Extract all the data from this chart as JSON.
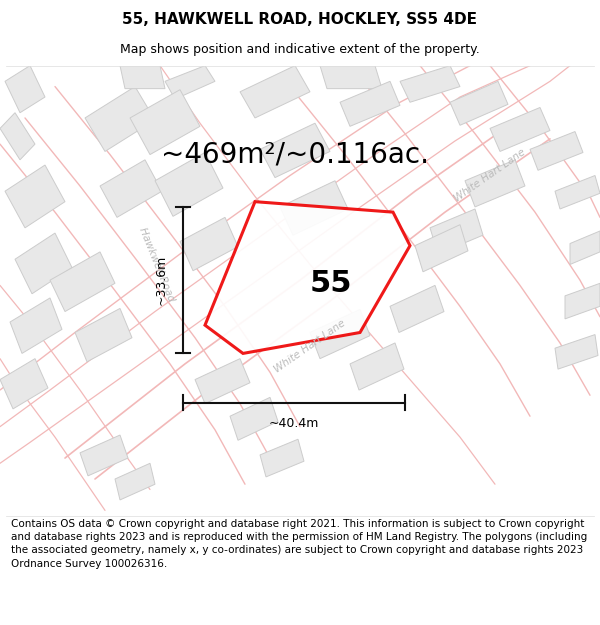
{
  "title": "55, HAWKWELL ROAD, HOCKLEY, SS5 4DE",
  "subtitle": "Map shows position and indicative extent of the property.",
  "area_label": "~469m²/~0.116ac.",
  "property_number": "55",
  "dim_width": "~40.4m",
  "dim_height": "~33.6m",
  "footer": "Contains OS data © Crown copyright and database right 2021. This information is subject to Crown copyright and database rights 2023 and is reproduced with the permission of HM Land Registry. The polygons (including the associated geometry, namely x, y co-ordinates) are subject to Crown copyright and database rights 2023 Ordnance Survey 100026316.",
  "road_color": "#f2b8b8",
  "road_color2": "#e8a0a0",
  "building_color": "#e8e8e8",
  "building_edge": "#cccccc",
  "property_outline_color": "#ee0000",
  "dim_line_color": "#111111",
  "road_label_color": "#bbbbbb",
  "street_label1": "Hawkwell Road",
  "street_label2": "White Hart Lane",
  "title_fontsize": 11,
  "subtitle_fontsize": 9,
  "area_fontsize": 20,
  "number_fontsize": 22,
  "footer_fontsize": 7.5
}
